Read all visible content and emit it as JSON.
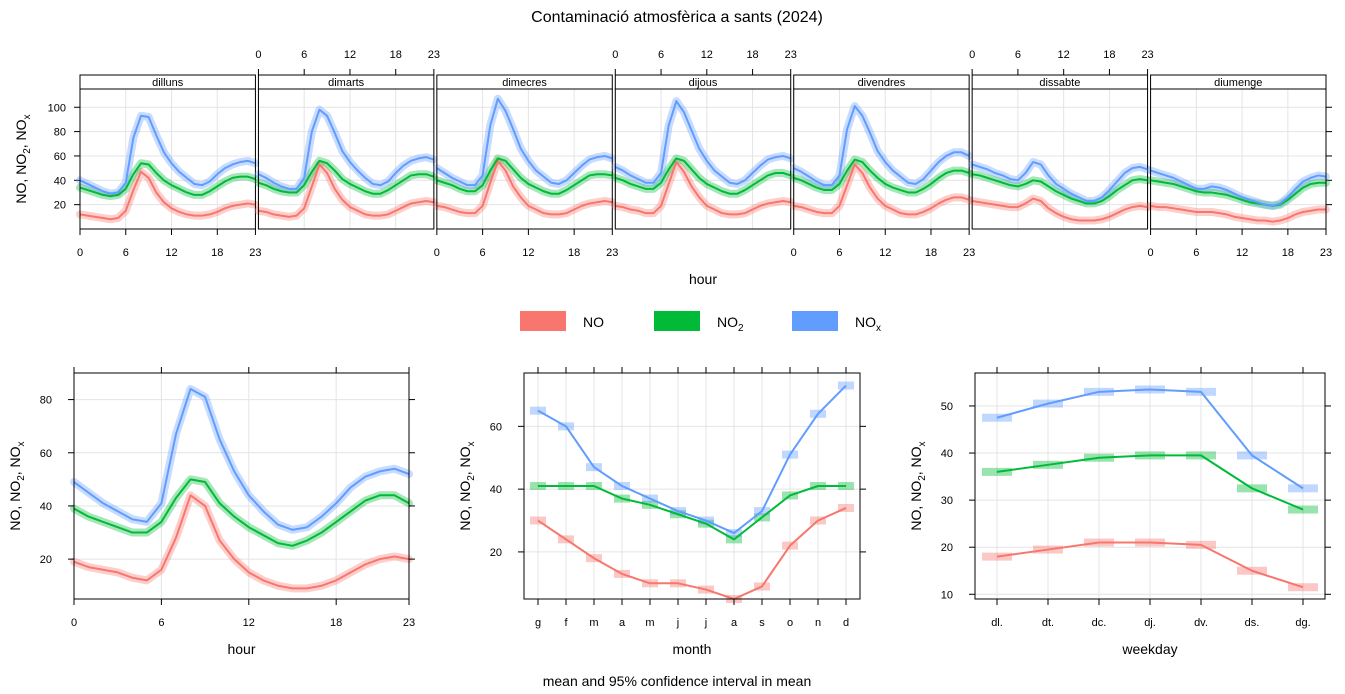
{
  "title": "Contaminació atmosfèrica a sants (2024)",
  "caption": "mean and 95% confidence interval in mean",
  "legend": [
    {
      "key": "NO",
      "label": "NO",
      "sub": "",
      "color": "#F8766D"
    },
    {
      "key": "NO2",
      "label": "NO",
      "sub": "2",
      "color": "#00BA38"
    },
    {
      "key": "NOx",
      "label": "NO",
      "sub": "x",
      "color": "#619CFF"
    }
  ],
  "ylabel": {
    "parts": [
      "NO, NO",
      "2",
      ", NO",
      "x"
    ]
  },
  "chart_data": [
    {
      "type": "line",
      "name": "diurnal_by_weekday",
      "xlabel": "hour",
      "x_ticks": [
        0,
        6,
        12,
        18,
        23
      ],
      "xlim": [
        0,
        23
      ],
      "ylim": [
        0,
        115
      ],
      "y_ticks": [
        20,
        40,
        60,
        80,
        100
      ],
      "grid": true,
      "panels": [
        {
          "label": "dilluns",
          "series": {
            "NO": [
              12,
              11,
              10,
              9,
              8,
              9,
              15,
              32,
              47,
              42,
              30,
              22,
              17,
              14,
              12,
              11,
              11,
              12,
              14,
              17,
              19,
              20,
              21,
              20
            ],
            "NO2": [
              34,
              32,
              30,
              28,
              27,
              28,
              33,
              45,
              54,
              53,
              46,
              40,
              36,
              33,
              30,
              28,
              28,
              31,
              35,
              39,
              42,
              43,
              43,
              41
            ],
            "NOx": [
              40,
              37,
              34,
              31,
              29,
              30,
              38,
              75,
              93,
              92,
              77,
              63,
              54,
              47,
              42,
              37,
              36,
              39,
              45,
              50,
              53,
              55,
              56,
              54
            ]
          }
        },
        {
          "label": "dimarts",
          "series": {
            "NO": [
              15,
              14,
              12,
              11,
              10,
              11,
              17,
              35,
              53,
              46,
              33,
              24,
              18,
              15,
              12,
              11,
              11,
              12,
              15,
              18,
              21,
              22,
              23,
              22
            ],
            "NO2": [
              38,
              36,
              33,
              31,
              30,
              30,
              36,
              47,
              56,
              54,
              48,
              41,
              37,
              34,
              31,
              29,
              29,
              32,
              36,
              40,
              44,
              45,
              45,
              43
            ],
            "NOx": [
              45,
              42,
              38,
              35,
              33,
              33,
              42,
              80,
              98,
              93,
              79,
              64,
              55,
              48,
              42,
              37,
              36,
              39,
              46,
              52,
              56,
              58,
              59,
              57
            ]
          }
        },
        {
          "label": "dimecres",
          "series": {
            "NO": [
              19,
              18,
              16,
              14,
              13,
              13,
              19,
              38,
              56,
              48,
              35,
              26,
              19,
              16,
              13,
              12,
              12,
              13,
              16,
              19,
              21,
              22,
              23,
              22
            ],
            "NO2": [
              40,
              38,
              36,
              33,
              31,
              31,
              36,
              48,
              58,
              56,
              49,
              42,
              37,
              34,
              31,
              29,
              29,
              32,
              36,
              40,
              44,
              45,
              45,
              44
            ],
            "NOx": [
              50,
              46,
              42,
              39,
              36,
              36,
              44,
              85,
              107,
              97,
              82,
              66,
              56,
              48,
              43,
              38,
              37,
              40,
              46,
              52,
              57,
              59,
              60,
              58
            ]
          }
        },
        {
          "label": "dijous",
          "series": {
            "NO": [
              19,
              18,
              16,
              15,
              13,
              13,
              19,
              37,
              55,
              47,
              35,
              26,
              19,
              16,
              13,
              12,
              12,
              13,
              16,
              19,
              21,
              22,
              23,
              22
            ],
            "NO2": [
              42,
              40,
              37,
              35,
              33,
              33,
              38,
              49,
              58,
              56,
              49,
              42,
              37,
              34,
              31,
              29,
              29,
              32,
              36,
              40,
              44,
              46,
              46,
              44
            ],
            "NOx": [
              51,
              48,
              44,
              41,
              38,
              38,
              46,
              85,
              105,
              96,
              81,
              66,
              56,
              48,
              43,
              38,
              37,
              40,
              46,
              52,
              57,
              59,
              60,
              58
            ]
          }
        },
        {
          "label": "divendres",
          "series": {
            "NO": [
              19,
              18,
              16,
              14,
              13,
              13,
              19,
              36,
              53,
              46,
              34,
              25,
              19,
              16,
              13,
              12,
              12,
              14,
              17,
              21,
              24,
              26,
              26,
              24
            ],
            "NO2": [
              42,
              40,
              37,
              34,
              32,
              32,
              37,
              48,
              57,
              55,
              48,
              42,
              37,
              34,
              32,
              30,
              30,
              33,
              37,
              42,
              46,
              48,
              48,
              46
            ],
            "NOx": [
              50,
              47,
              43,
              39,
              36,
              36,
              44,
              82,
              101,
              93,
              79,
              64,
              55,
              48,
              43,
              38,
              37,
              41,
              48,
              55,
              60,
              63,
              63,
              60
            ]
          }
        },
        {
          "label": "dissabte",
          "series": {
            "NO": [
              23,
              22,
              21,
              20,
              19,
              18,
              18,
              21,
              25,
              23,
              17,
              13,
              10,
              8,
              7,
              7,
              7,
              8,
              10,
              13,
              16,
              18,
              19,
              18
            ],
            "NO2": [
              45,
              44,
              42,
              40,
              38,
              36,
              35,
              37,
              40,
              39,
              35,
              31,
              28,
              25,
              23,
              21,
              21,
              23,
              27,
              32,
              36,
              40,
              41,
              40
            ],
            "NOx": [
              53,
              51,
              49,
              46,
              44,
              41,
              40,
              46,
              55,
              53,
              44,
              37,
              33,
              29,
              26,
              23,
              23,
              26,
              32,
              39,
              46,
              50,
              51,
              49
            ]
          }
        },
        {
          "label": "diumenge",
          "series": {
            "NO": [
              19,
              18,
              18,
              17,
              16,
              15,
              14,
              14,
              14,
              13,
              12,
              10,
              9,
              8,
              7,
              7,
              6,
              7,
              9,
              12,
              14,
              15,
              16,
              16
            ],
            "NO2": [
              40,
              39,
              38,
              37,
              35,
              33,
              31,
              30,
              30,
              29,
              28,
              26,
              24,
              22,
              21,
              20,
              19,
              20,
              24,
              29,
              34,
              37,
              38,
              38
            ],
            "NOx": [
              48,
              46,
              44,
              42,
              39,
              36,
              33,
              33,
              35,
              34,
              32,
              29,
              26,
              24,
              22,
              20,
              19,
              21,
              26,
              33,
              39,
              42,
              44,
              43
            ]
          }
        }
      ]
    },
    {
      "type": "line",
      "name": "hour",
      "xlabel": "hour",
      "x_ticks": [
        0,
        6,
        12,
        18,
        23
      ],
      "xlim": [
        0,
        23
      ],
      "ylim": [
        5,
        90
      ],
      "y_ticks": [
        20,
        40,
        60,
        80
      ],
      "grid": true,
      "x": [
        0,
        1,
        2,
        3,
        4,
        5,
        6,
        7,
        8,
        9,
        10,
        11,
        12,
        13,
        14,
        15,
        16,
        17,
        18,
        19,
        20,
        21,
        22,
        23
      ],
      "series": {
        "NO": [
          19,
          17,
          16,
          15,
          13,
          12,
          16,
          28,
          44,
          40,
          27,
          20,
          15,
          12,
          10,
          9,
          9,
          10,
          12,
          15,
          18,
          20,
          21,
          20
        ],
        "NO2": [
          39,
          36,
          34,
          32,
          30,
          30,
          34,
          43,
          50,
          49,
          41,
          36,
          32,
          29,
          26,
          25,
          27,
          30,
          34,
          38,
          42,
          44,
          44,
          41
        ],
        "NOx": [
          49,
          45,
          41,
          38,
          35,
          34,
          41,
          67,
          84,
          81,
          65,
          53,
          44,
          38,
          33,
          31,
          32,
          36,
          41,
          47,
          51,
          53,
          54,
          52
        ]
      }
    },
    {
      "type": "line",
      "name": "month",
      "xlabel": "month",
      "categories": [
        "g",
        "f",
        "m",
        "a",
        "m",
        "j",
        "j",
        "a",
        "s",
        "o",
        "n",
        "d"
      ],
      "ylim": [
        5,
        77
      ],
      "y_ticks": [
        20,
        40,
        60
      ],
      "grid": true,
      "series": {
        "NO": [
          30,
          24,
          18,
          13,
          10,
          10,
          8,
          5,
          9,
          22,
          30,
          34
        ],
        "NO2": [
          41,
          41,
          41,
          37,
          35,
          32,
          29,
          24,
          31,
          38,
          41,
          41
        ],
        "NOx": [
          65,
          60,
          47,
          41,
          37,
          33,
          30,
          26,
          33,
          51,
          64,
          73
        ]
      }
    },
    {
      "type": "line",
      "name": "weekday",
      "xlabel": "weekday",
      "categories": [
        "dl.",
        "dt.",
        "dc.",
        "dj.",
        "dv.",
        "ds.",
        "dg."
      ],
      "ylim": [
        9,
        57
      ],
      "y_ticks": [
        10,
        20,
        30,
        40,
        50
      ],
      "grid": true,
      "series": {
        "NO": [
          18,
          19.5,
          21,
          21,
          20.5,
          15,
          11.5
        ],
        "NO2": [
          36,
          37.5,
          39,
          39.5,
          39.5,
          32.5,
          28
        ],
        "NOx": [
          47.5,
          50.5,
          53,
          53.5,
          53,
          39.5,
          32.5
        ]
      }
    }
  ]
}
